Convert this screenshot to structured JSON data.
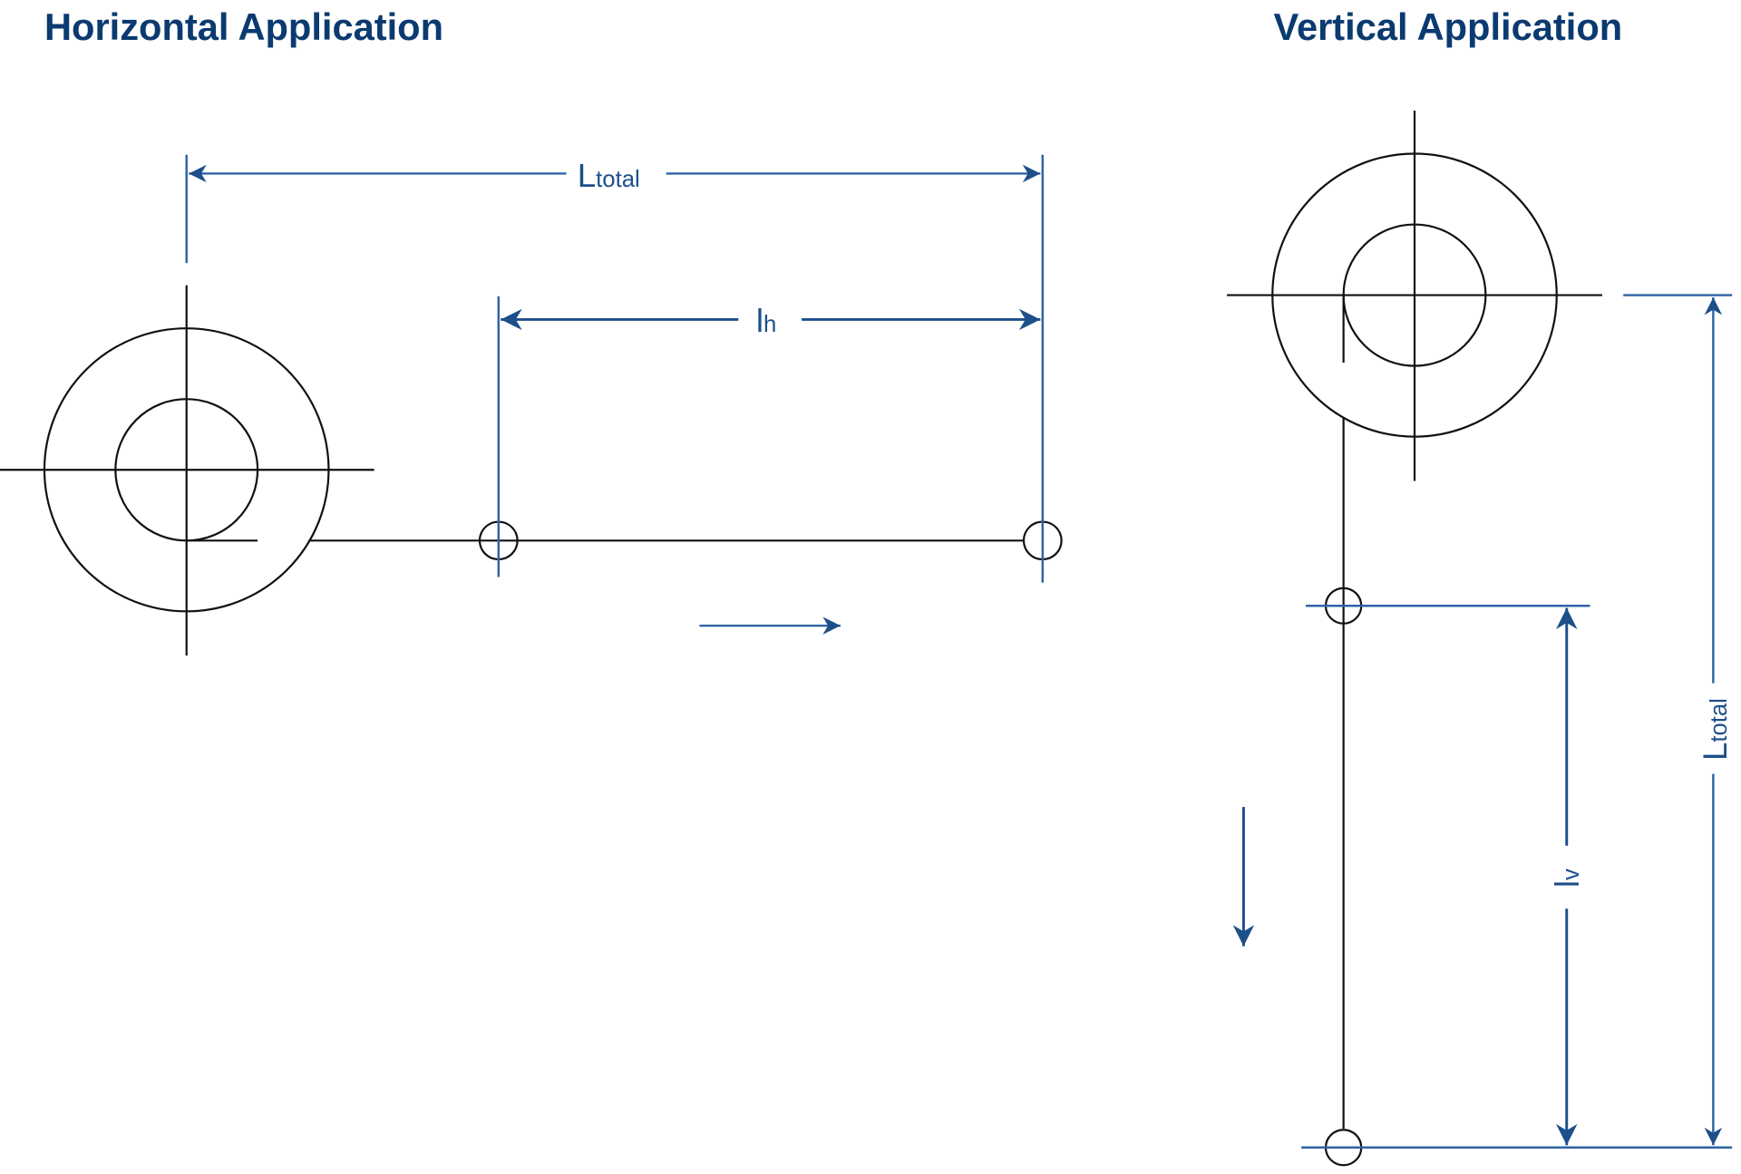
{
  "horizontal": {
    "title": "Horizontal Application",
    "total_label_main": "L",
    "total_label_sub": "total",
    "partial_label_main": "l",
    "partial_label_sub": "h"
  },
  "vertical": {
    "title": "Vertical Application",
    "total_label_main": "L",
    "total_label_sub": "total",
    "partial_label_main": "l",
    "partial_label_sub": "v"
  },
  "colors": {
    "title": "#0b3a70",
    "dimension": "#2f63a3",
    "drawing": "#111111"
  }
}
